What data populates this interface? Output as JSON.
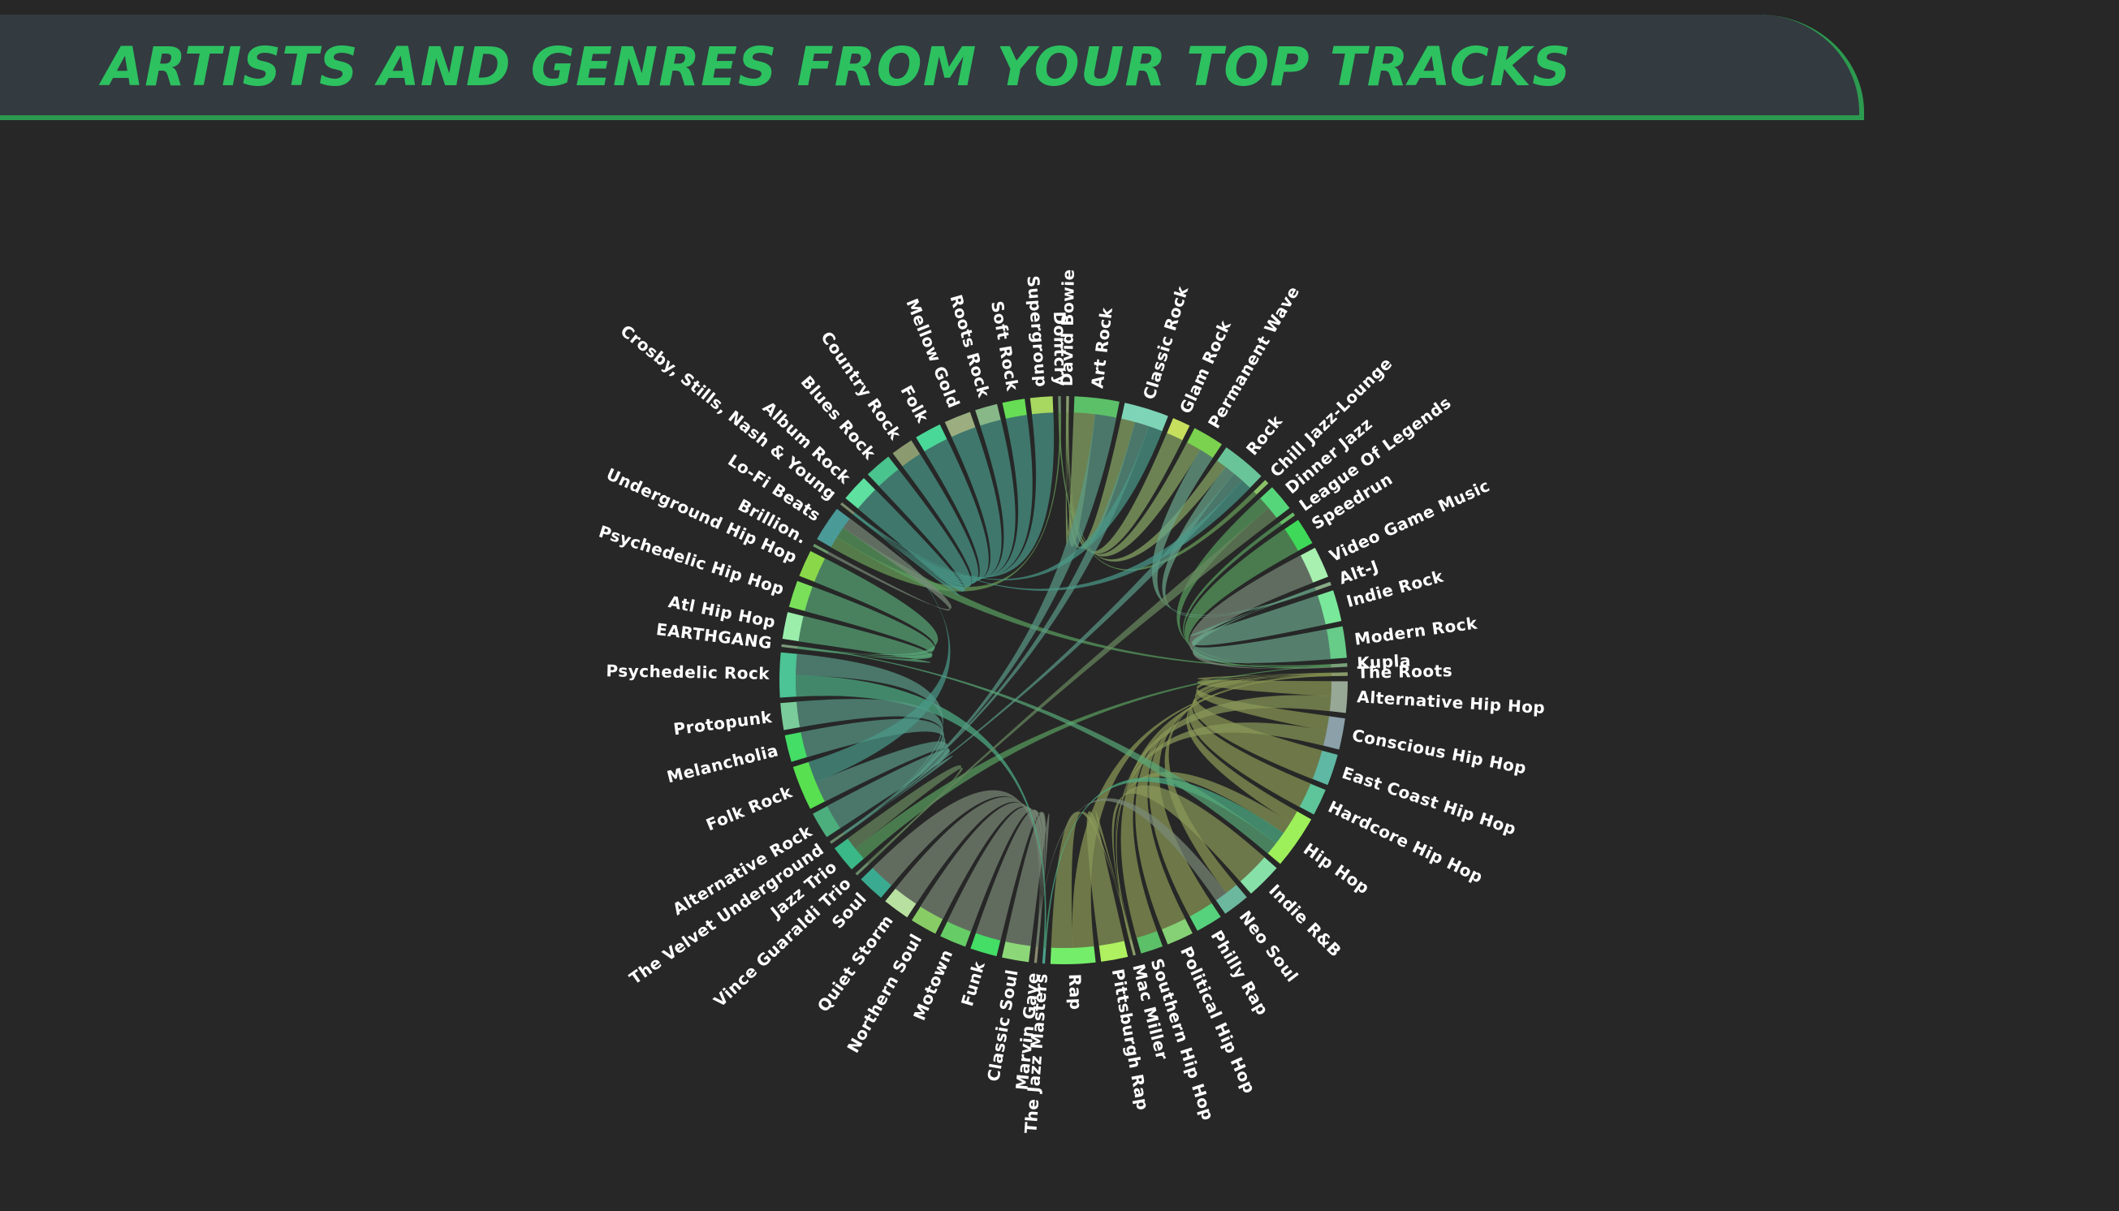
{
  "header": {
    "title": "ARTISTS AND GENRES FROM YOUR TOP TRACKS"
  },
  "colors": {
    "background": "#272727",
    "title_bar": "#333a40",
    "title_text": "#2dc160",
    "accent_line": "#2c9a4f"
  },
  "chart_data": {
    "type": "chord",
    "title": "ARTISTS AND GENRES FROM YOUR TOP TRACKS",
    "nodes": [
      {
        "name": "David Bowie",
        "kind": "artist",
        "weight": 0.3,
        "color": "#8aa070"
      },
      {
        "name": "Art Rock",
        "kind": "genre",
        "weight": 5,
        "color": "#5cc068"
      },
      {
        "name": "Classic Rock",
        "kind": "genre",
        "weight": 5,
        "color": "#7ed4b6"
      },
      {
        "name": "Glam Rock",
        "kind": "genre",
        "weight": 2,
        "color": "#c6e05e"
      },
      {
        "name": "Permanent Wave",
        "kind": "genre",
        "weight": 3.5,
        "color": "#7bd24f"
      },
      {
        "name": "Rock",
        "kind": "genre",
        "weight": 5,
        "color": "#6ac499"
      },
      {
        "name": "Chill Jazz-Lounge",
        "kind": "genre",
        "weight": 0.5,
        "color": "#8ac266"
      },
      {
        "name": "Dinner Jazz",
        "kind": "genre",
        "weight": 3,
        "color": "#56d67a"
      },
      {
        "name": "League Of Legends",
        "kind": "genre",
        "weight": 0.4,
        "color": "#66bb66"
      },
      {
        "name": "Speedrun",
        "kind": "genre",
        "weight": 3,
        "color": "#3ed958"
      },
      {
        "name": "Video Game Music",
        "kind": "genre",
        "weight": 3.5,
        "color": "#a8f0b0"
      },
      {
        "name": "Alt-J",
        "kind": "artist",
        "weight": 0.4,
        "color": "#88aa88"
      },
      {
        "name": "Indie Rock",
        "kind": "genre",
        "weight": 3.5,
        "color": "#7ae89a"
      },
      {
        "name": "Modern Rock",
        "kind": "genre",
        "weight": 3.5,
        "color": "#66cc88"
      },
      {
        "name": "Kupla",
        "kind": "artist",
        "weight": 0.4,
        "color": "#7aa07a"
      },
      {
        "name": "The Roots",
        "kind": "artist",
        "weight": 0.4,
        "color": "#8a9a6a"
      },
      {
        "name": "Alternative Hip Hop",
        "kind": "genre",
        "weight": 3.5,
        "color": "#98a896"
      },
      {
        "name": "Conscious Hip Hop",
        "kind": "genre",
        "weight": 3.5,
        "color": "#8ba0a8"
      },
      {
        "name": "East Coast Hip Hop",
        "kind": "genre",
        "weight": 3.5,
        "color": "#5fb8a3"
      },
      {
        "name": "Hardcore Hip Hop",
        "kind": "genre",
        "weight": 3,
        "color": "#5ec49a"
      },
      {
        "name": "Hip Hop",
        "kind": "genre",
        "weight": 6,
        "color": "#9ef05a"
      },
      {
        "name": "Indie R&B",
        "kind": "genre",
        "weight": 4,
        "color": "#86e0a8"
      },
      {
        "name": "Neo Soul",
        "kind": "genre",
        "weight": 3,
        "color": "#6cb89e"
      },
      {
        "name": "Philly Rap",
        "kind": "genre",
        "weight": 3,
        "color": "#56d27c"
      },
      {
        "name": "Political Hip Hop",
        "kind": "genre",
        "weight": 3,
        "color": "#86d076"
      },
      {
        "name": "Southern Hip Hop",
        "kind": "genre",
        "weight": 2.5,
        "color": "#5cc068"
      },
      {
        "name": "Mac Miller",
        "kind": "artist",
        "weight": 0.3,
        "color": "#8a9a6a"
      },
      {
        "name": "Pittsburgh Rap",
        "kind": "genre",
        "weight": 3,
        "color": "#aef060"
      },
      {
        "name": "Rap",
        "kind": "genre",
        "weight": 5,
        "color": "#74ee6a"
      },
      {
        "name": "The Jazz Masters",
        "kind": "artist",
        "weight": 0.3,
        "color": "#4aa08a"
      },
      {
        "name": "Marvin Gaye",
        "kind": "artist",
        "weight": 0.3,
        "color": "#8a8a70"
      },
      {
        "name": "Classic Soul",
        "kind": "genre",
        "weight": 3,
        "color": "#8cd878"
      },
      {
        "name": "Funk",
        "kind": "genre",
        "weight": 3,
        "color": "#44dd66"
      },
      {
        "name": "Motown",
        "kind": "genre",
        "weight": 3,
        "color": "#66cc66"
      },
      {
        "name": "Northern Soul",
        "kind": "genre",
        "weight": 3,
        "color": "#88cc66"
      },
      {
        "name": "Quiet Storm",
        "kind": "genre",
        "weight": 3,
        "color": "#b8e0a0"
      },
      {
        "name": "Soul",
        "kind": "genre",
        "weight": 3,
        "color": "#3aaa90"
      },
      {
        "name": "Vince Guaraldi Trio",
        "kind": "artist",
        "weight": 0.3,
        "color": "#6a8a6a"
      },
      {
        "name": "Jazz Trio",
        "kind": "genre",
        "weight": 3,
        "color": "#3ab888"
      },
      {
        "name": "The Velvet Underground",
        "kind": "artist",
        "weight": 0.3,
        "color": "#6a8a6a"
      },
      {
        "name": "Alternative Rock",
        "kind": "genre",
        "weight": 3,
        "color": "#4cae7c"
      },
      {
        "name": "Folk Rock",
        "kind": "genre",
        "weight": 5,
        "color": "#58e050"
      },
      {
        "name": "Melancholia",
        "kind": "genre",
        "weight": 3,
        "color": "#44dd66"
      },
      {
        "name": "Protopunk",
        "kind": "genre",
        "weight": 3,
        "color": "#7acc9a"
      },
      {
        "name": "Psychedelic Rock",
        "kind": "genre",
        "weight": 5,
        "color": "#4cc496"
      },
      {
        "name": "EARTHGANG",
        "kind": "artist",
        "weight": 0.3,
        "color": "#7a9a7a"
      },
      {
        "name": "Atl Hip Hop",
        "kind": "genre",
        "weight": 3,
        "color": "#9aeeaa"
      },
      {
        "name": "Psychedelic Hip Hop",
        "kind": "genre",
        "weight": 3,
        "color": "#7ae05a"
      },
      {
        "name": "Underground Hip Hop",
        "kind": "genre",
        "weight": 3,
        "color": "#8ad84a"
      },
      {
        "name": "Brillion.",
        "kind": "artist",
        "weight": 0.3,
        "color": "#6a9a6a"
      },
      {
        "name": "Lo-Fi Beats",
        "kind": "genre",
        "weight": 4,
        "color": "#4a9a98"
      },
      {
        "name": "Crosby, Stills, Nash & Young",
        "kind": "artist",
        "weight": 0.3,
        "color": "#7a8a6a"
      },
      {
        "name": "Album Rock",
        "kind": "genre",
        "weight": 3,
        "color": "#5ee0a0"
      },
      {
        "name": "Blues Rock",
        "kind": "genre",
        "weight": 3,
        "color": "#4ac48e"
      },
      {
        "name": "Country Rock",
        "kind": "genre",
        "weight": 2.5,
        "color": "#8c9a70"
      },
      {
        "name": "Folk",
        "kind": "genre",
        "weight": 3,
        "color": "#4ad898"
      },
      {
        "name": "Mellow Gold",
        "kind": "genre",
        "weight": 3,
        "color": "#9cae80"
      },
      {
        "name": "Roots Rock",
        "kind": "genre",
        "weight": 2.5,
        "color": "#88b888"
      },
      {
        "name": "Soft Rock",
        "kind": "genre",
        "weight": 2.5,
        "color": "#66dd55"
      },
      {
        "name": "Supergroup",
        "kind": "genre",
        "weight": 2.5,
        "color": "#a8d860"
      },
      {
        "name": "Dontcry",
        "kind": "artist",
        "weight": 0.3,
        "color": "#6a8a6a"
      }
    ],
    "links": [
      {
        "source": "David Bowie",
        "target": "Art Rock",
        "color": "#8aaa66"
      },
      {
        "source": "David Bowie",
        "target": "Classic Rock",
        "color": "#8aaa66"
      },
      {
        "source": "David Bowie",
        "target": "Glam Rock",
        "color": "#8aaa66"
      },
      {
        "source": "David Bowie",
        "target": "Permanent Wave",
        "color": "#8aaa66"
      },
      {
        "source": "David Bowie",
        "target": "Rock",
        "color": "#8aaa66"
      },
      {
        "source": "Dontcry",
        "target": "Chill Jazz-Lounge",
        "color": "#6aa05a"
      },
      {
        "source": "Dontcry",
        "target": "Lo-Fi Beats",
        "color": "#6aa05a"
      },
      {
        "source": "Kupla",
        "target": "Dinner Jazz",
        "color": "#5aa060"
      },
      {
        "source": "Kupla",
        "target": "Lo-Fi Beats",
        "color": "#5aa060"
      },
      {
        "source": "Kupla",
        "target": "Jazz Trio",
        "color": "#5aa060"
      },
      {
        "source": "Kupla",
        "target": "Speedrun",
        "color": "#5aa060"
      },
      {
        "source": "Kupla",
        "target": "League Of Legends",
        "color": "#5aa060"
      },
      {
        "source": "Kupla",
        "target": "Video Game Music",
        "color": "#7a8a7a"
      },
      {
        "source": "Alt-J",
        "target": "Indie Rock",
        "color": "#6aa58a"
      },
      {
        "source": "Alt-J",
        "target": "Modern Rock",
        "color": "#6aa58a"
      },
      {
        "source": "Alt-J",
        "target": "Permanent Wave",
        "color": "#6aa58a"
      },
      {
        "source": "Alt-J",
        "target": "Rock",
        "color": "#6aa58a"
      },
      {
        "source": "The Roots",
        "target": "Alternative Hip Hop",
        "color": "#8c9a55"
      },
      {
        "source": "The Roots",
        "target": "Conscious Hip Hop",
        "color": "#8c9a55"
      },
      {
        "source": "The Roots",
        "target": "East Coast Hip Hop",
        "color": "#8c9a55"
      },
      {
        "source": "The Roots",
        "target": "Hardcore Hip Hop",
        "color": "#8c9a55"
      },
      {
        "source": "The Roots",
        "target": "Hip Hop",
        "color": "#8c9a55"
      },
      {
        "source": "The Roots",
        "target": "Neo Soul",
        "color": "#8c9a55"
      },
      {
        "source": "The Roots",
        "target": "Philly Rap",
        "color": "#8c9a55"
      },
      {
        "source": "The Roots",
        "target": "Political Hip Hop",
        "color": "#8c9a55"
      },
      {
        "source": "The Roots",
        "target": "Southern Hip Hop",
        "color": "#8c9a55"
      },
      {
        "source": "The Roots",
        "target": "Rap",
        "color": "#8c9a55"
      },
      {
        "source": "Mac Miller",
        "target": "Hip Hop",
        "color": "#8a9a5a"
      },
      {
        "source": "Mac Miller",
        "target": "Pittsburgh Rap",
        "color": "#8a9a5a"
      },
      {
        "source": "Mac Miller",
        "target": "Rap",
        "color": "#8a9a5a"
      },
      {
        "source": "Mac Miller",
        "target": "Indie R&B",
        "color": "#8a9a5a"
      },
      {
        "source": "Mac Miller",
        "target": "Conscious Hip Hop",
        "color": "#8a9a5a"
      },
      {
        "source": "Mac Miller",
        "target": "Alternative Hip Hop",
        "color": "#8a9a5a"
      },
      {
        "source": "Marvin Gaye",
        "target": "Classic Soul",
        "color": "#7a8a78"
      },
      {
        "source": "Marvin Gaye",
        "target": "Funk",
        "color": "#7a8a78"
      },
      {
        "source": "Marvin Gaye",
        "target": "Motown",
        "color": "#7a8a78"
      },
      {
        "source": "Marvin Gaye",
        "target": "Northern Soul",
        "color": "#7a8a78"
      },
      {
        "source": "Marvin Gaye",
        "target": "Quiet Storm",
        "color": "#7a8a78"
      },
      {
        "source": "Marvin Gaye",
        "target": "Soul",
        "color": "#7a8a78"
      },
      {
        "source": "Marvin Gaye",
        "target": "Neo Soul",
        "color": "#7a8a78"
      },
      {
        "source": "The Jazz Masters",
        "target": "Hip Hop",
        "color": "#4fb088"
      },
      {
        "source": "The Jazz Masters",
        "target": "Psychedelic Rock",
        "color": "#4fb088"
      },
      {
        "source": "Vince Guaraldi Trio",
        "target": "Jazz Trio",
        "color": "#6a8a60"
      },
      {
        "source": "Vince Guaraldi Trio",
        "target": "Dinner Jazz",
        "color": "#6a8a60"
      },
      {
        "source": "The Velvet Underground",
        "target": "Alternative Rock",
        "color": "#5a9a88"
      },
      {
        "source": "The Velvet Underground",
        "target": "Art Rock",
        "color": "#5a9a88"
      },
      {
        "source": "The Velvet Underground",
        "target": "Folk Rock",
        "color": "#5a9a88"
      },
      {
        "source": "The Velvet Underground",
        "target": "Melancholia",
        "color": "#5a9a88"
      },
      {
        "source": "The Velvet Underground",
        "target": "Protopunk",
        "color": "#5a9a88"
      },
      {
        "source": "The Velvet Underground",
        "target": "Psychedelic Rock",
        "color": "#5a9a88"
      },
      {
        "source": "The Velvet Underground",
        "target": "Rock",
        "color": "#5a9a88"
      },
      {
        "source": "The Velvet Underground",
        "target": "Classic Rock",
        "color": "#5a9a88"
      },
      {
        "source": "EARTHGANG",
        "target": "Atl Hip Hop",
        "color": "#58a878"
      },
      {
        "source": "EARTHGANG",
        "target": "Psychedelic Hip Hop",
        "color": "#58a878"
      },
      {
        "source": "EARTHGANG",
        "target": "Underground Hip Hop",
        "color": "#58a878"
      },
      {
        "source": "EARTHGANG",
        "target": "Hip Hop",
        "color": "#58a878"
      },
      {
        "source": "Brillion.",
        "target": "Lo-Fi Beats",
        "color": "#7a8a7a"
      },
      {
        "source": "Crosby, Stills, Nash & Young",
        "target": "Album Rock",
        "color": "#4a9a8a"
      },
      {
        "source": "Crosby, Stills, Nash & Young",
        "target": "Blues Rock",
        "color": "#4a9a8a"
      },
      {
        "source": "Crosby, Stills, Nash & Young",
        "target": "Country Rock",
        "color": "#4a9a8a"
      },
      {
        "source": "Crosby, Stills, Nash & Young",
        "target": "Folk",
        "color": "#4a9a8a"
      },
      {
        "source": "Crosby, Stills, Nash & Young",
        "target": "Mellow Gold",
        "color": "#4a9a8a"
      },
      {
        "source": "Crosby, Stills, Nash & Young",
        "target": "Roots Rock",
        "color": "#4a9a8a"
      },
      {
        "source": "Crosby, Stills, Nash & Young",
        "target": "Soft Rock",
        "color": "#4a9a8a"
      },
      {
        "source": "Crosby, Stills, Nash & Young",
        "target": "Supergroup",
        "color": "#4a9a8a"
      },
      {
        "source": "Crosby, Stills, Nash & Young",
        "target": "Classic Rock",
        "color": "#4a9a8a"
      },
      {
        "source": "Crosby, Stills, Nash & Young",
        "target": "Folk Rock",
        "color": "#4a9a8a"
      },
      {
        "source": "Crosby, Stills, Nash & Young",
        "target": "Rock",
        "color": "#4a9a8a"
      }
    ]
  }
}
